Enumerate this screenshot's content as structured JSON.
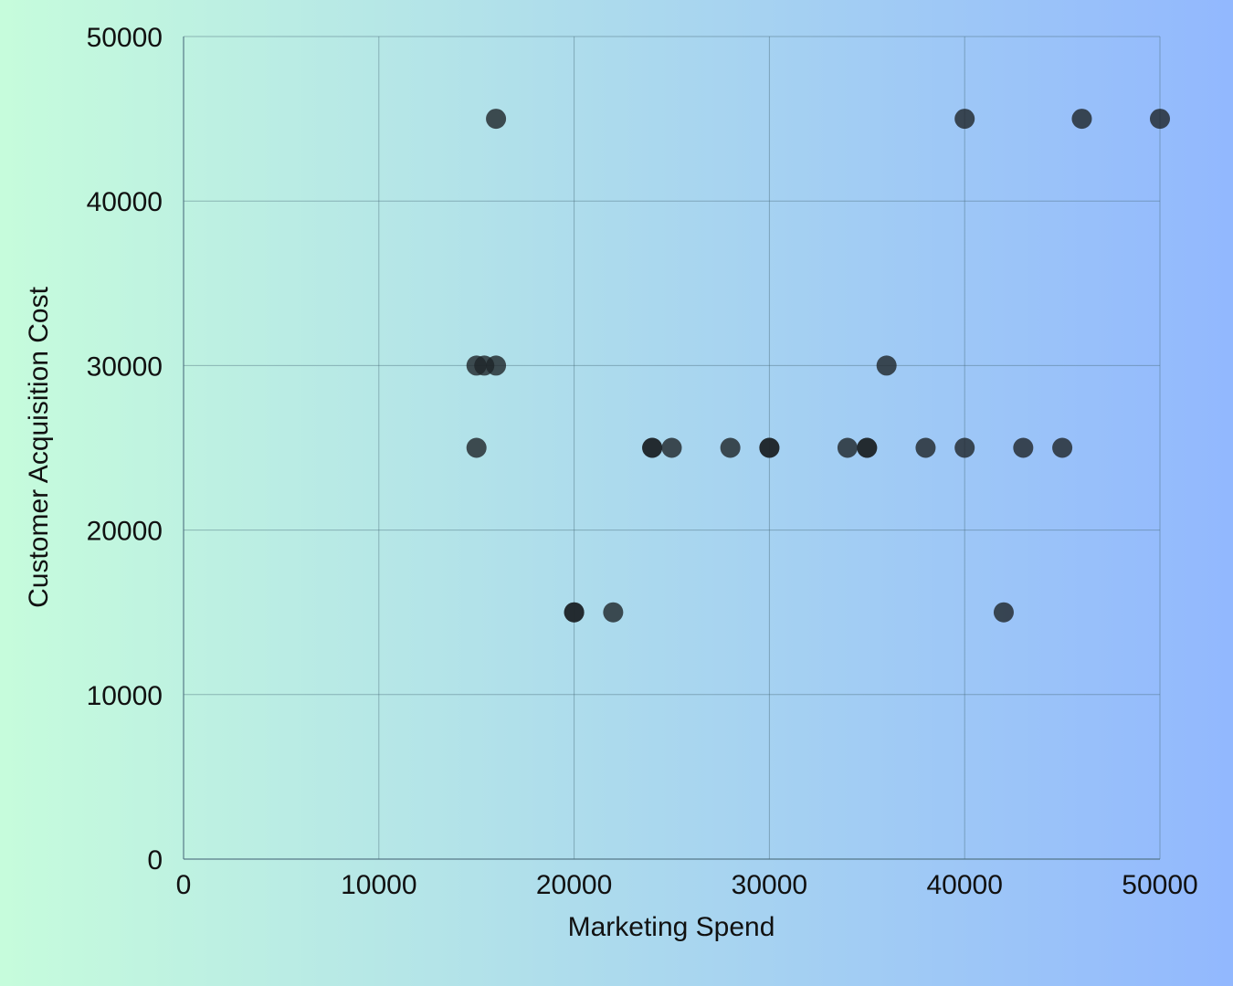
{
  "colors": {
    "background_left": "#c6fcdc",
    "background_right": "#92b8fe",
    "grid": "#4a6a7a",
    "axis": "#4a6a7a",
    "point": "#1e2428",
    "text": "#111111"
  },
  "chart_data": {
    "type": "scatter",
    "title": "",
    "xlabel": "Marketing Spend",
    "ylabel": "Customer Acquisition Cost",
    "xlim": [
      0,
      50000
    ],
    "ylim": [
      0,
      50000
    ],
    "x_ticks": [
      0,
      10000,
      20000,
      30000,
      40000,
      50000
    ],
    "y_ticks": [
      0,
      10000,
      20000,
      30000,
      40000,
      50000
    ],
    "x_tick_labels": [
      "0",
      "10000",
      "20000",
      "30000",
      "40000",
      "50000"
    ],
    "y_tick_labels": [
      "0",
      "10000",
      "20000",
      "30000",
      "40000",
      "50000"
    ],
    "grid": true,
    "legend": "none",
    "series": [
      {
        "points": [
          {
            "x": 16000,
            "y": 45000
          },
          {
            "x": 40000,
            "y": 45000
          },
          {
            "x": 46000,
            "y": 45000
          },
          {
            "x": 50000,
            "y": 45000
          },
          {
            "x": 15000,
            "y": 30000
          },
          {
            "x": 15400,
            "y": 30000
          },
          {
            "x": 16000,
            "y": 30000
          },
          {
            "x": 36000,
            "y": 30000
          },
          {
            "x": 15000,
            "y": 25000
          },
          {
            "x": 24000,
            "y": 25000
          },
          {
            "x": 24000,
            "y": 25000
          },
          {
            "x": 25000,
            "y": 25000
          },
          {
            "x": 28000,
            "y": 25000
          },
          {
            "x": 30000,
            "y": 25000
          },
          {
            "x": 30000,
            "y": 25000
          },
          {
            "x": 34000,
            "y": 25000
          },
          {
            "x": 35000,
            "y": 25000
          },
          {
            "x": 35000,
            "y": 25000
          },
          {
            "x": 38000,
            "y": 25000
          },
          {
            "x": 40000,
            "y": 25000
          },
          {
            "x": 43000,
            "y": 25000
          },
          {
            "x": 45000,
            "y": 25000
          },
          {
            "x": 20000,
            "y": 15000
          },
          {
            "x": 20000,
            "y": 15000
          },
          {
            "x": 22000,
            "y": 15000
          },
          {
            "x": 42000,
            "y": 15000
          }
        ]
      }
    ]
  }
}
